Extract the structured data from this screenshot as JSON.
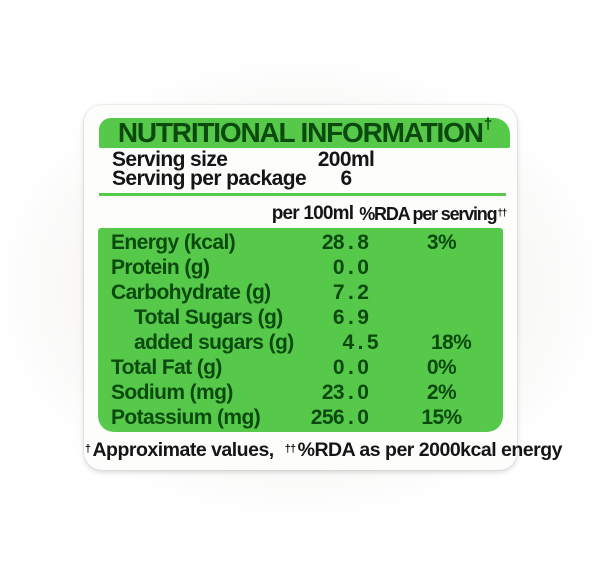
{
  "colors": {
    "green": "#56C94A",
    "dark_green_text": "#0B4A0F",
    "black_text": "#151515",
    "card_bg": "#FDFDFC",
    "backdrop": "#EFEEEC"
  },
  "label": {
    "title": "NUTRITIONAL INFORMATION",
    "title_dagger": "†",
    "serving_rows": [
      {
        "name": "Serving size",
        "value": "200ml"
      },
      {
        "name": "Serving per package",
        "value": "6"
      }
    ],
    "column_headers": {
      "per_amount": "per 100ml",
      "rda": "%RDA per serving",
      "rda_dagger": "††"
    },
    "nutrients": [
      {
        "name": "Energy (kcal)",
        "value": "28.8",
        "rda": "3%"
      },
      {
        "name": "Protein (g)",
        "value": "0.0",
        "rda": ""
      },
      {
        "name": "Carbohydrate (g)",
        "value": "7.2",
        "rda": ""
      },
      {
        "name": "Total Sugars (g)",
        "value": "6.9",
        "rda": ""
      },
      {
        "name": "added sugars (g)",
        "value": "4.5",
        "rda": "18%"
      },
      {
        "name": "Total Fat (g)",
        "value": "0.0",
        "rda": "0%"
      },
      {
        "name": "Sodium (mg)",
        "value": "23.0",
        "rda": "2%"
      },
      {
        "name": "Potassium (mg)",
        "value": "256.0",
        "rda": "15%"
      }
    ],
    "footnote": {
      "dagger1": "†",
      "text1": "Approximate values,",
      "dagger2": "††",
      "text2": "%RDA as per 2000kcal energy"
    }
  }
}
